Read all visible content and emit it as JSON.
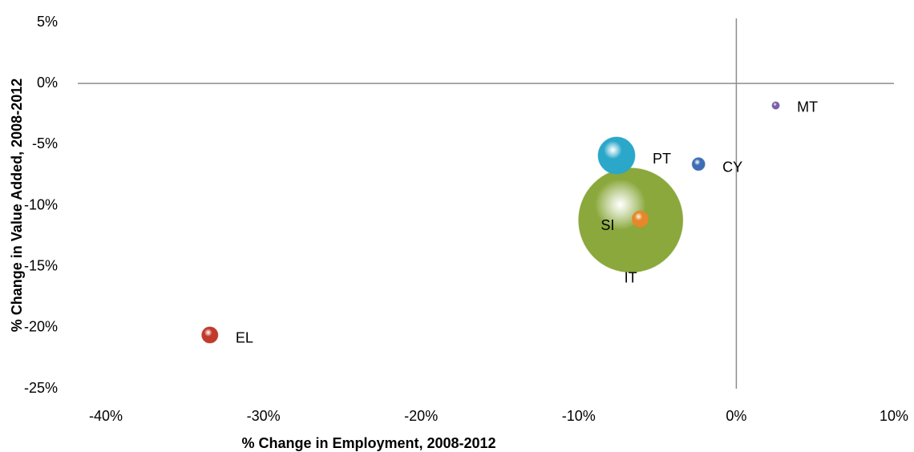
{
  "chart_data": {
    "type": "bubble",
    "x_label": "% Change in Employment, 2008-2012",
    "y_label": "% Change in Value Added, 2008-2012",
    "categories": [
      "IT",
      "PT",
      "SI",
      "CY",
      "MT",
      "EL"
    ],
    "x": [
      -6.7,
      -7.6,
      -6.1,
      -2.4,
      2.5,
      -33.4
    ],
    "values": [
      -11.2,
      -5.9,
      -11.1,
      -6.6,
      -1.8,
      -20.6
    ],
    "sizes": [
      100,
      12.5,
      2.4,
      1.5,
      0.5,
      2.4
    ],
    "colors": [
      "#8aa83c",
      "#2aa7c9",
      "#e8862a",
      "#3d6eb4",
      "#7b5ea7",
      "#c0392b"
    ],
    "xlim": [
      -40,
      10
    ],
    "ylim": [
      -25,
      5
    ],
    "xticks": [
      {
        "value": -40,
        "label": "-40%"
      },
      {
        "value": -30,
        "label": "-30%"
      },
      {
        "value": -20,
        "label": "-20%"
      },
      {
        "value": -10,
        "label": "-10%"
      },
      {
        "value": 0,
        "label": "0%"
      },
      {
        "value": 10,
        "label": "10%"
      }
    ],
    "yticks": [
      {
        "value": 5,
        "label": "5%"
      },
      {
        "value": 0,
        "label": "0%"
      },
      {
        "value": -5,
        "label": "-5%"
      },
      {
        "value": -10,
        "label": "-10%"
      },
      {
        "value": -15,
        "label": "-15%"
      },
      {
        "value": -20,
        "label": "-20%"
      },
      {
        "value": -25,
        "label": "-25%"
      }
    ]
  }
}
